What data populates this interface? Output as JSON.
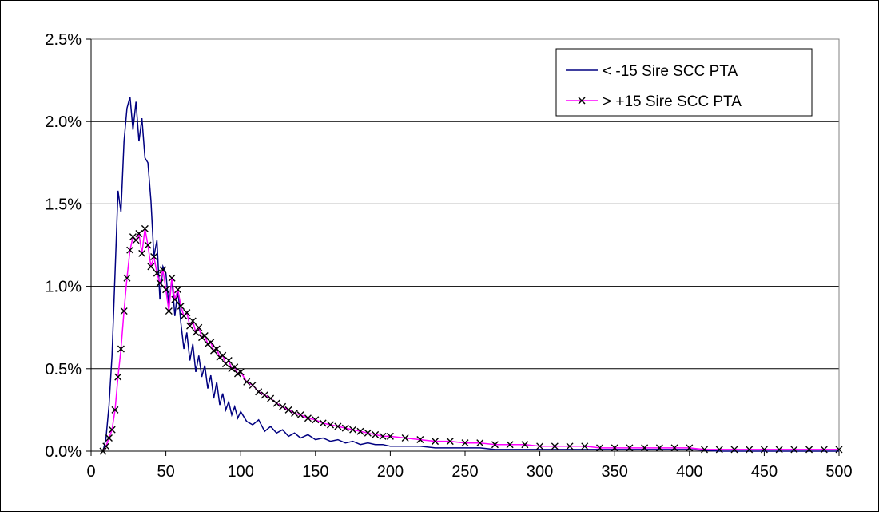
{
  "chart_data": {
    "type": "line",
    "title": "",
    "xlabel": "",
    "ylabel": "",
    "xlim": [
      0,
      500
    ],
    "ylim": [
      0,
      0.025
    ],
    "x_ticks": [
      "0",
      "50",
      "100",
      "150",
      "200",
      "250",
      "300",
      "350",
      "400",
      "450",
      "500"
    ],
    "y_ticks": [
      "0.0%",
      "0.5%",
      "1.0%",
      "1.5%",
      "2.0%",
      "2.5%"
    ],
    "grid": "horizontal",
    "legend_position": "top-right",
    "series": [
      {
        "name": "< -15 Sire SCC PTA",
        "color": "#000080",
        "marker": "none",
        "x": [
          8,
          10,
          12,
          14,
          16,
          18,
          20,
          22,
          24,
          26,
          28,
          30,
          32,
          34,
          36,
          38,
          40,
          42,
          44,
          46,
          48,
          50,
          52,
          54,
          56,
          58,
          60,
          62,
          64,
          66,
          68,
          70,
          72,
          74,
          76,
          78,
          80,
          82,
          84,
          86,
          88,
          90,
          92,
          94,
          96,
          98,
          100,
          104,
          108,
          112,
          116,
          120,
          124,
          128,
          132,
          136,
          140,
          145,
          150,
          155,
          160,
          165,
          170,
          175,
          180,
          185,
          190,
          195,
          200,
          210,
          220,
          230,
          240,
          250,
          260,
          270,
          280,
          300,
          320,
          340,
          360,
          380,
          400,
          420,
          440,
          460,
          480,
          500
        ],
        "values": [
          0.0,
          0.0008,
          0.0028,
          0.0058,
          0.0108,
          0.0158,
          0.0145,
          0.0188,
          0.0208,
          0.0215,
          0.0195,
          0.0212,
          0.0188,
          0.0202,
          0.0178,
          0.0175,
          0.0152,
          0.0118,
          0.0128,
          0.0092,
          0.0112,
          0.0108,
          0.0088,
          0.0105,
          0.0082,
          0.0098,
          0.0078,
          0.0062,
          0.0072,
          0.0055,
          0.0065,
          0.0048,
          0.0058,
          0.0045,
          0.0052,
          0.0038,
          0.0046,
          0.0032,
          0.0042,
          0.0028,
          0.0035,
          0.0025,
          0.003,
          0.0022,
          0.0027,
          0.002,
          0.0024,
          0.0018,
          0.0016,
          0.0019,
          0.0012,
          0.0015,
          0.0011,
          0.0013,
          0.0009,
          0.0011,
          0.0008,
          0.001,
          0.0007,
          0.0008,
          0.0006,
          0.0007,
          0.0005,
          0.0006,
          0.0004,
          0.0005,
          0.0004,
          0.0004,
          0.0003,
          0.0003,
          0.0003,
          0.0002,
          0.0002,
          0.0002,
          0.0002,
          0.0001,
          0.0001,
          0.0001,
          0.0001,
          0.0001,
          0.0001,
          0.0001,
          0.0001,
          0.0,
          0.0,
          0.0,
          0.0,
          0.0
        ]
      },
      {
        "name": "> +15 Sire SCC PTA",
        "color": "#ff00ff",
        "marker": "x",
        "marker_color": "#000000",
        "x": [
          8,
          10,
          12,
          14,
          16,
          18,
          20,
          22,
          24,
          26,
          28,
          30,
          32,
          34,
          36,
          38,
          40,
          42,
          44,
          46,
          48,
          50,
          52,
          54,
          56,
          58,
          60,
          62,
          64,
          66,
          68,
          70,
          72,
          74,
          76,
          78,
          80,
          82,
          84,
          86,
          88,
          90,
          92,
          94,
          96,
          98,
          100,
          104,
          108,
          112,
          116,
          120,
          124,
          128,
          132,
          136,
          140,
          145,
          150,
          155,
          160,
          165,
          170,
          175,
          180,
          185,
          190,
          195,
          200,
          210,
          220,
          230,
          240,
          250,
          260,
          270,
          280,
          290,
          300,
          310,
          320,
          330,
          340,
          350,
          360,
          370,
          380,
          390,
          400,
          410,
          420,
          430,
          440,
          450,
          460,
          470,
          480,
          490,
          500
        ],
        "values": [
          0.0,
          0.0003,
          0.0008,
          0.0013,
          0.0025,
          0.0045,
          0.0062,
          0.0085,
          0.0105,
          0.0122,
          0.013,
          0.0128,
          0.0132,
          0.012,
          0.0135,
          0.0125,
          0.0112,
          0.0118,
          0.0108,
          0.0102,
          0.011,
          0.0098,
          0.0085,
          0.0105,
          0.0092,
          0.0098,
          0.0088,
          0.0082,
          0.0084,
          0.0076,
          0.0079,
          0.0072,
          0.0075,
          0.0069,
          0.007,
          0.0065,
          0.0066,
          0.0061,
          0.0062,
          0.0057,
          0.0058,
          0.0053,
          0.0055,
          0.005,
          0.0051,
          0.0047,
          0.0048,
          0.0042,
          0.004,
          0.0036,
          0.0034,
          0.0032,
          0.0029,
          0.0027,
          0.0025,
          0.0023,
          0.0022,
          0.002,
          0.0019,
          0.0017,
          0.0016,
          0.0015,
          0.0014,
          0.0013,
          0.0012,
          0.0011,
          0.001,
          0.0009,
          0.0009,
          0.0008,
          0.0007,
          0.0006,
          0.0006,
          0.0005,
          0.0005,
          0.0004,
          0.0004,
          0.0004,
          0.0003,
          0.0003,
          0.0003,
          0.0003,
          0.0002,
          0.0002,
          0.0002,
          0.0002,
          0.0002,
          0.0002,
          0.0002,
          0.0001,
          0.0001,
          0.0001,
          0.0001,
          0.0001,
          0.0001,
          0.0001,
          0.0001,
          0.0001,
          0.0001
        ]
      }
    ]
  }
}
